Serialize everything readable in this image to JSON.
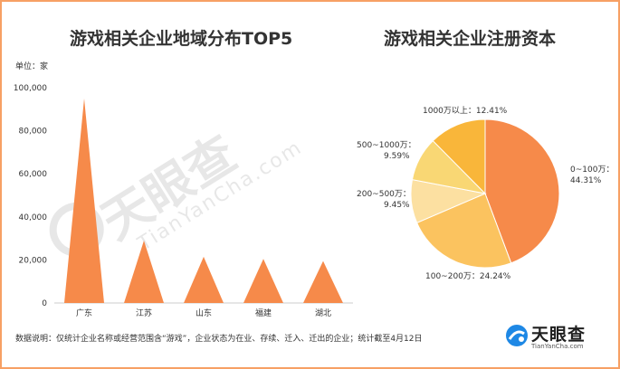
{
  "left_title": "游戏相关企业地域分布TOP5",
  "right_title": "游戏相关企业注册资本",
  "unit_label": "单位：家",
  "note": "数据说明：仅统计企业名称或经营范围含“游戏”，企业状态为在业、存续、迁入、迁出的企业；统计截至4月12日",
  "brand": {
    "name": "天眼查",
    "sub": "TianYanCha.com"
  },
  "watermark": {
    "name": "天眼查",
    "sub": "TianYanCha.com"
  },
  "colors": {
    "bar": "#F68A4A",
    "frame": "#F7A064",
    "axis": "#CCCCCC"
  },
  "chart_data": [
    {
      "type": "bar",
      "shape": "triangle",
      "categories": [
        "广东",
        "江苏",
        "山东",
        "福建",
        "湖北"
      ],
      "values": [
        95000,
        29000,
        21500,
        20500,
        19500
      ],
      "ylim": [
        0,
        100000
      ],
      "yticks": [
        "0",
        "20,000",
        "40,000",
        "60,000",
        "80,000",
        "100,000"
      ],
      "ytick_values": [
        0,
        20000,
        40000,
        60000,
        80000,
        100000
      ],
      "title": "游戏相关企业地域分布TOP5",
      "ylabel": "单位：家",
      "grid": false
    },
    {
      "type": "pie",
      "title": "游戏相关企业注册资本",
      "slices": [
        {
          "label": "0~100万：",
          "pct_label": "44.31%",
          "value": 44.31,
          "color": "#F68A4A"
        },
        {
          "label": "100~200万：24.24%",
          "pct_label": "",
          "value": 24.24,
          "color": "#FBC35F"
        },
        {
          "label": "200~500万：",
          "pct_label": "9.45%",
          "value": 9.45,
          "color": "#FCE0A1"
        },
        {
          "label": "500~1000万：",
          "pct_label": "9.59%",
          "value": 9.59,
          "color": "#F9D774"
        },
        {
          "label": "1000万以上：12.41%",
          "pct_label": "",
          "value": 12.41,
          "color": "#F9B63A"
        }
      ]
    }
  ]
}
